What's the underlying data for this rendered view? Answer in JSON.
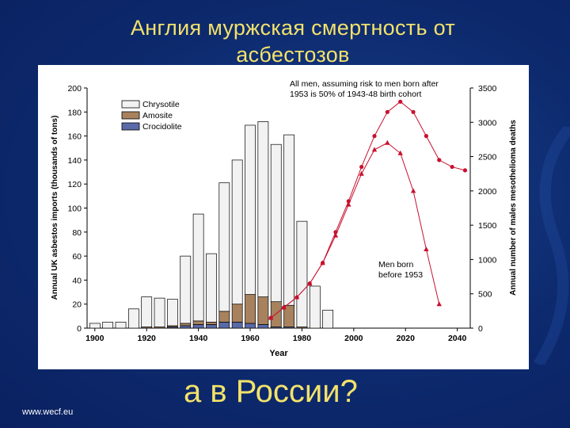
{
  "slide": {
    "title": "Англия мурж­ская  смертность от асбестозов",
    "title_line1": "Англия мурж­ская  смертность от",
    "title_line2": "асбестозов",
    "subtitle": "а в России?",
    "footer": "www.wecf.eu"
  },
  "chart_data": {
    "type": "bar",
    "xlabel": "Year",
    "ylabel_left": "Annual UK asbestos imports (thousands of tons)",
    "ylabel_right": "Annual number of males mesothelioma deaths",
    "ylim_left": [
      0,
      200
    ],
    "ylim_right": [
      0,
      3500
    ],
    "xlim": [
      1897,
      2045
    ],
    "x_ticks": [
      "1900",
      "1920",
      "1940",
      "1960",
      "1980",
      "2000",
      "2020",
      "2040"
    ],
    "y_left_ticks": [
      "0",
      "20",
      "40",
      "60",
      "80",
      "100",
      "120",
      "140",
      "160",
      "180",
      "200"
    ],
    "y_right_ticks": [
      "0",
      "500",
      "1000",
      "1500",
      "2000",
      "2500",
      "3000",
      "3500"
    ],
    "legend_position": "top-left",
    "bar_years": [
      1900,
      1905,
      1910,
      1915,
      1920,
      1925,
      1930,
      1935,
      1940,
      1945,
      1950,
      1955,
      1960,
      1965,
      1970,
      1975,
      1980,
      1985,
      1990
    ],
    "bar_series": [
      {
        "name": "Crocidolite",
        "color": "#5a6aa8",
        "values": [
          0,
          0,
          0,
          0,
          0,
          0,
          1,
          2,
          3,
          3,
          5,
          5,
          4,
          3,
          1,
          1,
          0,
          0,
          0
        ]
      },
      {
        "name": "Amosite",
        "color": "#a8825e",
        "values": [
          0,
          0,
          0,
          0,
          1,
          1,
          1,
          2,
          3,
          2,
          9,
          15,
          24,
          23,
          21,
          18,
          1,
          0,
          0
        ]
      },
      {
        "name": "Chrysotile",
        "color": "#f2f2f2",
        "values": [
          4,
          5,
          5,
          16,
          25,
          24,
          22,
          56,
          89,
          57,
          107,
          120,
          141,
          146,
          131,
          142,
          88,
          35,
          15
        ]
      }
    ],
    "line_series": [
      {
        "name": "All men, assuming risk to men born after 1953 is 50% of 1943-48 birth cohort",
        "marker": "circle",
        "color": "#c8102e",
        "x": [
          1968,
          1973,
          1978,
          1983,
          1988,
          1993,
          1998,
          2003,
          2008,
          2013,
          2018,
          2023,
          2028,
          2033,
          2038,
          2043
        ],
        "y": [
          150,
          300,
          450,
          650,
          950,
          1400,
          1850,
          2350,
          2800,
          3150,
          3300,
          3150,
          2800,
          2450,
          2350,
          2300
        ]
      },
      {
        "name": "Men born before 1953",
        "marker": "triangle",
        "color": "#c8102e",
        "x": [
          1968,
          1973,
          1978,
          1983,
          1988,
          1993,
          1998,
          2003,
          2008,
          2013,
          2018,
          2023,
          2028,
          2033
        ],
        "y": [
          150,
          300,
          450,
          650,
          950,
          1350,
          1800,
          2250,
          2600,
          2700,
          2550,
          2000,
          1150,
          350
        ]
      }
    ],
    "annotations": [
      {
        "text_line1": "All men, assuming risk to men born after",
        "text_line2": "1953 is 50% of 1943-48 birth cohort"
      },
      {
        "text_line1": "Men born",
        "text_line2": "before 1953"
      }
    ]
  }
}
